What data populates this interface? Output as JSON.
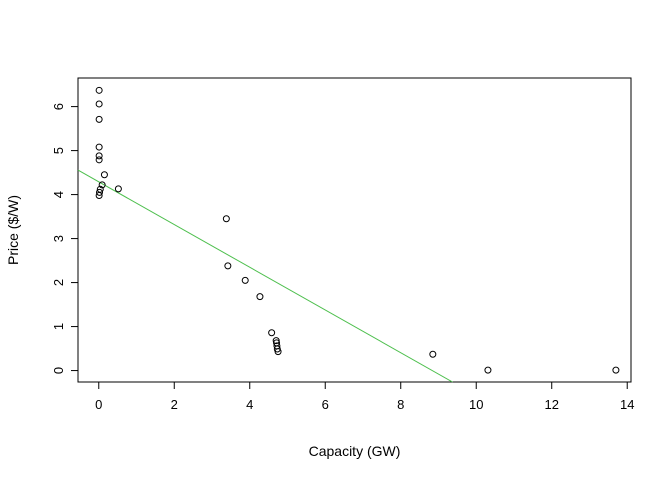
{
  "chart_data": {
    "type": "scatter",
    "title": "",
    "xlabel": "Capacity (GW)",
    "ylabel": "Price ($/W)",
    "xlim": [
      -0.55,
      14.1
    ],
    "ylim": [
      -0.26,
      6.65
    ],
    "xticks": [
      "0",
      "2",
      "4",
      "6",
      "8",
      "10",
      "12",
      "14"
    ],
    "yticks": [
      "0",
      "1",
      "2",
      "3",
      "4",
      "5",
      "6"
    ],
    "grid": false,
    "legend": "none",
    "points": [
      {
        "x": 0.01,
        "y": 6.37
      },
      {
        "x": 0.01,
        "y": 6.06
      },
      {
        "x": 0.01,
        "y": 5.71
      },
      {
        "x": 0.01,
        "y": 5.08
      },
      {
        "x": 0.01,
        "y": 4.88
      },
      {
        "x": 0.01,
        "y": 4.79
      },
      {
        "x": 0.15,
        "y": 4.45
      },
      {
        "x": 0.09,
        "y": 4.22
      },
      {
        "x": 0.04,
        "y": 4.12
      },
      {
        "x": 0.02,
        "y": 4.05
      },
      {
        "x": 0.01,
        "y": 3.98
      },
      {
        "x": 0.52,
        "y": 4.13
      },
      {
        "x": 3.38,
        "y": 3.45
      },
      {
        "x": 3.42,
        "y": 2.38
      },
      {
        "x": 3.88,
        "y": 2.05
      },
      {
        "x": 4.27,
        "y": 1.68
      },
      {
        "x": 4.58,
        "y": 0.86
      },
      {
        "x": 4.7,
        "y": 0.68
      },
      {
        "x": 4.71,
        "y": 0.63
      },
      {
        "x": 4.72,
        "y": 0.56
      },
      {
        "x": 4.73,
        "y": 0.49
      },
      {
        "x": 4.75,
        "y": 0.43
      },
      {
        "x": 8.85,
        "y": 0.37
      },
      {
        "x": 10.31,
        "y": 0.01
      },
      {
        "x": 13.7,
        "y": 0.01
      }
    ],
    "fit_line": {
      "intercept": 4.29,
      "slope": -0.4855,
      "color": "#4dbf4d"
    },
    "point_color": "#000000"
  }
}
